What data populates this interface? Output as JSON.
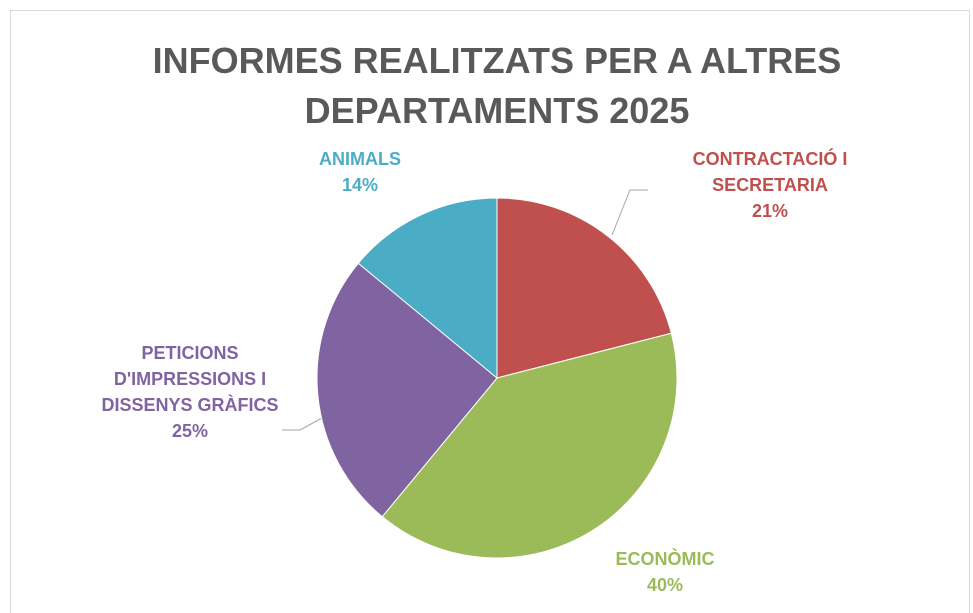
{
  "chart_data": {
    "type": "pie",
    "title": "INFORMES REALITZATS PER A ALTRES DEPARTAMENTS 2025",
    "categories": [
      "CONTRACTACIÓ I SECRETARIA",
      "ECONÒMIC",
      "PETICIONS D'IMPRESSIONS I DISSENYS GRÀFICS",
      "ANIMALS"
    ],
    "values": [
      21,
      40,
      25,
      14
    ],
    "value_labels": [
      "21%",
      "40%",
      "25%",
      "14%"
    ],
    "colors": [
      "#c0504d",
      "#9bbb59",
      "#8064a2",
      "#4bacc6"
    ]
  }
}
